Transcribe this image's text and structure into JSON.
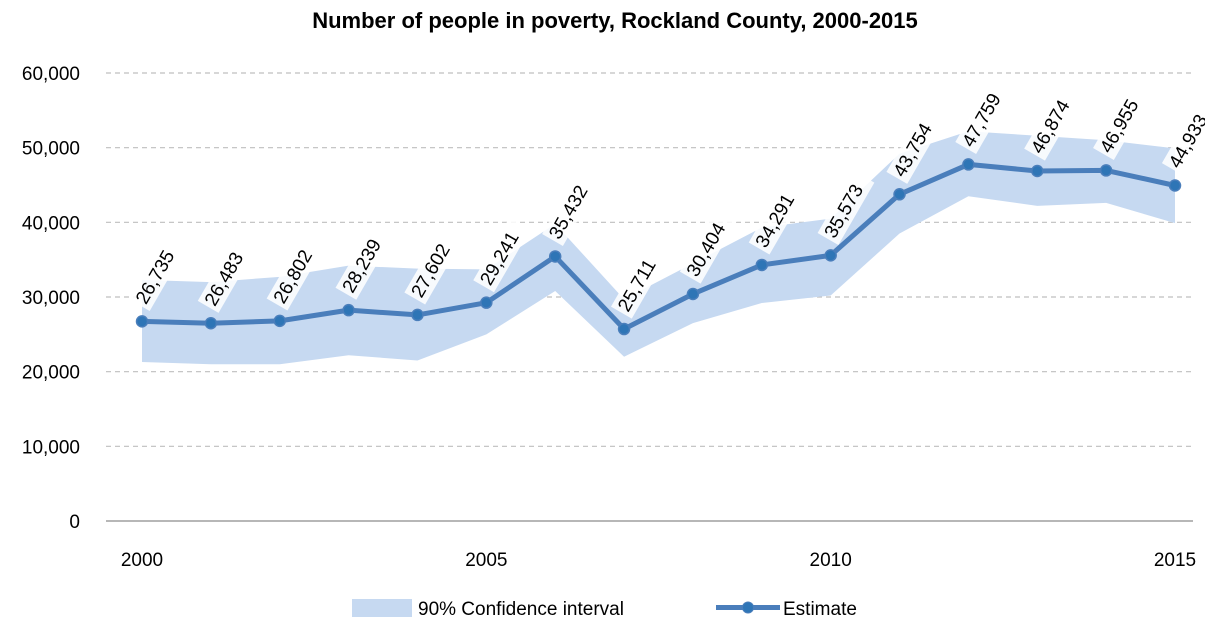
{
  "colors": {
    "estimate_line": "#4a7ebb",
    "estimate_marker": "#2e75b6",
    "ci_band": "#c6d9f1",
    "gridline": "#bfbfbf"
  },
  "chart_data": {
    "type": "line",
    "title": "Number of people in poverty, Rockland County, 2000-2015",
    "xlabel": "",
    "ylabel": "",
    "x": [
      2000,
      2001,
      2002,
      2003,
      2004,
      2005,
      2006,
      2007,
      2008,
      2009,
      2010,
      2011,
      2012,
      2013,
      2014,
      2015
    ],
    "x_ticks": [
      2000,
      2005,
      2010,
      2015
    ],
    "x_tick_labels": [
      "2000",
      "2005",
      "2010",
      "2015"
    ],
    "ylim": [
      0,
      60000
    ],
    "y_ticks": [
      0,
      10000,
      20000,
      30000,
      40000,
      50000,
      60000
    ],
    "y_tick_labels": [
      "0",
      "10,000",
      "20,000",
      "30,000",
      "40,000",
      "50,000",
      "60,000"
    ],
    "grid": true,
    "legend_position": "bottom",
    "series": [
      {
        "name": "Estimate",
        "values": [
          26735,
          26483,
          26802,
          28239,
          27602,
          29241,
          35432,
          25711,
          30404,
          34291,
          35573,
          43754,
          47759,
          46874,
          46955,
          44933
        ],
        "data_labels": [
          "26,735",
          "26,483",
          "26,802",
          "28,239",
          "27,602",
          "29,241",
          "35,432",
          "25,711",
          "30,404",
          "34,291",
          "35,573",
          "43,754",
          "47,759",
          "46,874",
          "46,955",
          "44,933"
        ]
      },
      {
        "name": "90% Confidence interval",
        "type": "area",
        "lower": [
          21300,
          21000,
          21000,
          22200,
          21500,
          25000,
          30800,
          22000,
          26500,
          29200,
          30200,
          38500,
          43500,
          42200,
          42600,
          39900
        ],
        "upper": [
          32300,
          32000,
          32700,
          34200,
          33800,
          33700,
          39800,
          29700,
          34500,
          39300,
          40500,
          49200,
          52200,
          51600,
          51000,
          49900
        ]
      }
    ]
  }
}
